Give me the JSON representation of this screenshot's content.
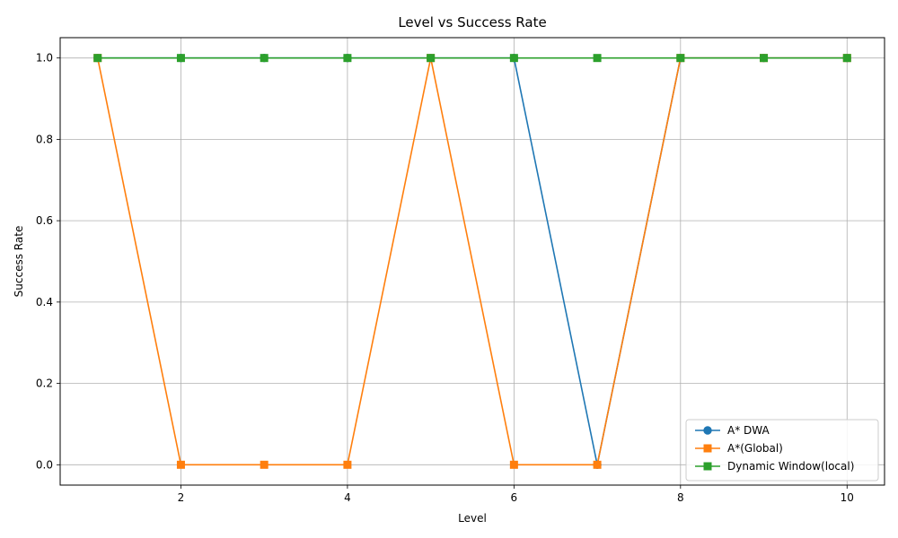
{
  "chart_data": {
    "type": "line",
    "title": "Level vs Success Rate",
    "xlabel": "Level",
    "ylabel": "Success Rate",
    "x": [
      1,
      2,
      3,
      4,
      5,
      6,
      7,
      8,
      9,
      10
    ],
    "xlim": [
      0.55,
      10.45
    ],
    "ylim": [
      -0.05,
      1.05
    ],
    "xticks": [
      2,
      4,
      6,
      8,
      10
    ],
    "yticks": [
      0.0,
      0.2,
      0.4,
      0.6,
      0.8,
      1.0
    ],
    "xtick_labels": [
      "2",
      "4",
      "6",
      "8",
      "10"
    ],
    "ytick_labels": [
      "0.0",
      "0.2",
      "0.4",
      "0.6",
      "0.8",
      "1.0"
    ],
    "grid": true,
    "legend_position": "lower-right",
    "series": [
      {
        "name": "A* DWA",
        "color": "#1f77b4",
        "marker": "circle",
        "values": [
          1,
          1,
          1,
          1,
          1,
          1,
          0,
          1,
          1,
          1
        ]
      },
      {
        "name": "A*(Global)",
        "color": "#ff7f0e",
        "marker": "square",
        "values": [
          1,
          0,
          0,
          0,
          1,
          0,
          0,
          1,
          1,
          1
        ]
      },
      {
        "name": "Dynamic Window(local)",
        "color": "#2ca02c",
        "marker": "square",
        "values": [
          1,
          1,
          1,
          1,
          1,
          1,
          1,
          1,
          1,
          1
        ]
      }
    ]
  }
}
